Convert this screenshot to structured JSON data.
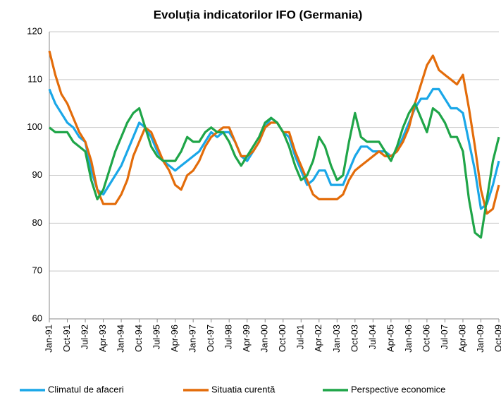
{
  "chart_data": {
    "type": "line",
    "title": "Evoluția indicatorilor IFO (Germania)",
    "categories": [
      "Jan-91",
      null,
      null,
      "Oct-91",
      null,
      null,
      "Jul-92",
      null,
      null,
      "Apr-93",
      null,
      null,
      "Jan-94",
      null,
      null,
      "Oct-94",
      null,
      null,
      "Jul-95",
      null,
      null,
      "Apr-96",
      null,
      null,
      "Jan-97",
      null,
      null,
      "Oct-97",
      null,
      null,
      "Jul-98",
      null,
      null,
      "Apr-99",
      null,
      null,
      "Jan-00",
      null,
      null,
      "Oct-00",
      null,
      null,
      "Jul-01",
      null,
      null,
      "Apr-02",
      null,
      null,
      "Jan-03",
      null,
      null,
      "Oct-03",
      null,
      null,
      "Jul-04",
      null,
      null,
      "Apr-05",
      null,
      null,
      "Jan-06",
      null,
      null,
      "Oct-06",
      null,
      null,
      "Jul-07",
      null,
      null,
      "Apr-08",
      null,
      null,
      "Jan-09",
      null,
      null,
      "Oct-09"
    ],
    "series": [
      {
        "name": "Climatul de afaceri",
        "color": "#1aa7e8",
        "values": [
          108,
          105,
          103,
          101,
          100,
          98,
          97,
          91,
          87,
          86,
          88,
          90,
          92,
          95,
          98,
          101,
          100,
          98,
          95,
          93,
          92,
          91,
          92,
          93,
          94,
          95,
          97,
          99,
          98,
          99,
          99,
          97,
          94,
          93,
          95,
          97,
          100,
          102,
          101,
          99,
          98,
          94,
          91,
          88,
          89,
          91,
          91,
          88,
          88,
          88,
          91,
          94,
          96,
          96,
          95,
          95,
          95,
          94,
          95,
          98,
          101,
          104,
          106,
          106,
          108,
          108,
          106,
          104,
          104,
          103,
          97,
          91,
          83,
          84,
          88,
          93
        ]
      },
      {
        "name": "Situatia curentă",
        "color": "#e36c0a",
        "values": [
          116,
          111,
          107,
          105,
          102,
          99,
          97,
          93,
          87,
          84,
          84,
          84,
          86,
          89,
          94,
          97,
          100,
          99,
          96,
          93,
          91,
          88,
          87,
          90,
          91,
          93,
          96,
          98,
          99,
          100,
          100,
          97,
          94,
          94,
          95,
          97,
          100,
          101,
          101,
          99,
          99,
          95,
          92,
          89,
          86,
          85,
          85,
          85,
          85,
          86,
          89,
          91,
          92,
          93,
          94,
          95,
          94,
          94,
          95,
          97,
          100,
          105,
          109,
          113,
          115,
          112,
          111,
          110,
          109,
          111,
          104,
          96,
          87,
          82,
          83,
          88
        ]
      },
      {
        "name": "Perspective economice",
        "color": "#1fa548",
        "values": [
          100,
          99,
          99,
          99,
          97,
          96,
          95,
          89,
          85,
          87,
          91,
          95,
          98,
          101,
          103,
          104,
          100,
          96,
          94,
          93,
          93,
          93,
          95,
          98,
          97,
          97,
          99,
          100,
          99,
          99,
          97,
          94,
          92,
          94,
          96,
          98,
          101,
          102,
          101,
          99,
          96,
          92,
          89,
          90,
          93,
          98,
          96,
          92,
          89,
          90,
          97,
          103,
          98,
          97,
          97,
          97,
          95,
          93,
          96,
          100,
          103,
          105,
          102,
          99,
          104,
          103,
          101,
          98,
          98,
          95,
          85,
          78,
          77,
          85,
          93,
          98
        ]
      }
    ],
    "ylim": [
      60,
      120
    ],
    "yticks": [
      60,
      70,
      80,
      90,
      100,
      110,
      120
    ],
    "grid": true,
    "legend": "bottom"
  }
}
